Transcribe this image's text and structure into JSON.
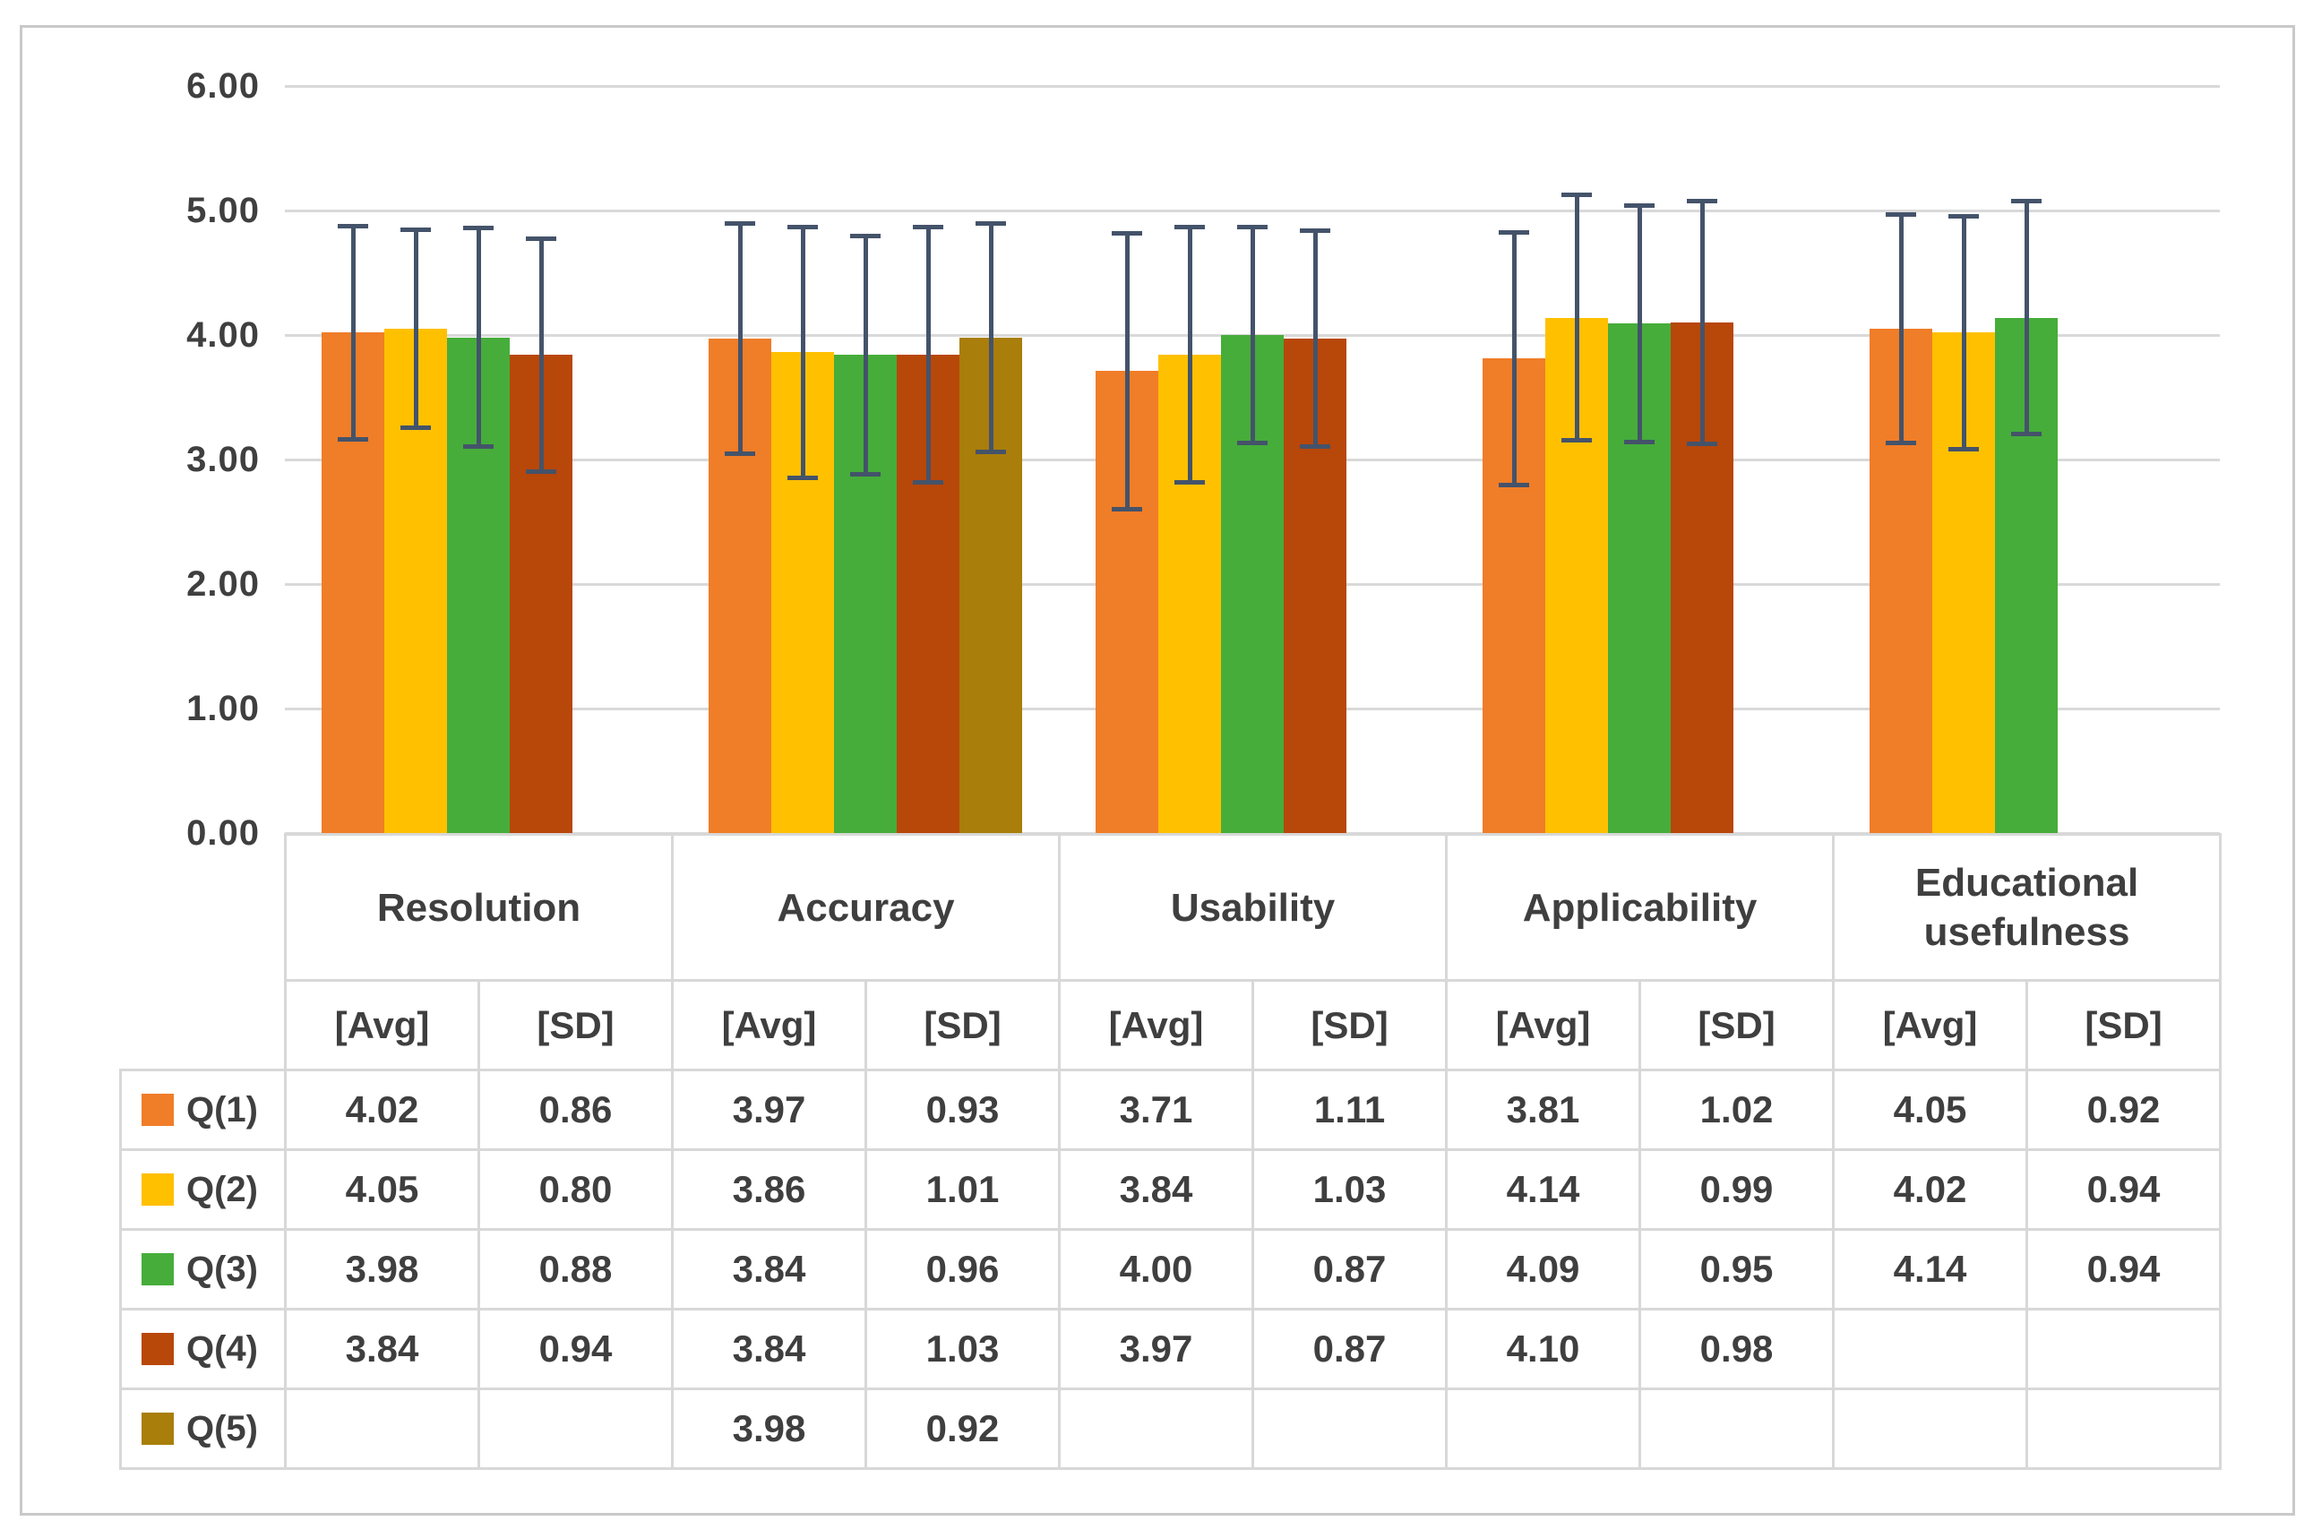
{
  "figure": {
    "background_color": "#FFFFFF",
    "frame_border_color": "#C9C9C9",
    "text_color": "#3F3F3F",
    "table_border_color": "#D8D8D8"
  },
  "chart_data": {
    "type": "bar",
    "title": "",
    "xlabel": "",
    "ylabel": "",
    "categories": [
      "Resolution",
      "Accuracy",
      "Usability",
      "Applicability",
      "Educational usefulness"
    ],
    "sub_headers": {
      "avg": "[Avg]",
      "sd": "[SD]"
    },
    "y_tick_labels": [
      "6.00",
      "5.00",
      "4.00",
      "3.00",
      "2.00",
      "1.00",
      "0.00"
    ],
    "y_tick_values": [
      6,
      5,
      4,
      3,
      2,
      1,
      0
    ],
    "ylim": [
      0,
      6
    ],
    "grid": true,
    "gridline_color": "#D9D9D9",
    "error_bars": "avg plus/minus sd",
    "error_bar_color": "#44536A",
    "legend_position": "table-left-column",
    "series": [
      {
        "name": "Q(1)",
        "color": "#F07D28",
        "avg": [
          4.02,
          3.97,
          3.71,
          3.81,
          4.05
        ],
        "sd": [
          0.86,
          0.93,
          1.11,
          1.02,
          0.92
        ]
      },
      {
        "name": "Q(2)",
        "color": "#FFC000",
        "avg": [
          4.05,
          3.86,
          3.84,
          4.14,
          4.02
        ],
        "sd": [
          0.8,
          1.01,
          1.03,
          0.99,
          0.94
        ]
      },
      {
        "name": "Q(3)",
        "color": "#46AD3A",
        "avg": [
          3.98,
          3.84,
          4.0,
          4.09,
          4.14
        ],
        "sd": [
          0.88,
          0.96,
          0.87,
          0.95,
          0.94
        ]
      },
      {
        "name": "Q(4)",
        "color": "#B8470A",
        "avg": [
          3.84,
          3.84,
          3.97,
          4.1,
          null
        ],
        "sd": [
          0.94,
          1.03,
          0.87,
          0.98,
          null
        ]
      },
      {
        "name": "Q(5)",
        "color": "#A97E0A",
        "avg": [
          null,
          3.98,
          null,
          null,
          null
        ],
        "sd": [
          null,
          0.92,
          null,
          null,
          null
        ]
      }
    ]
  }
}
